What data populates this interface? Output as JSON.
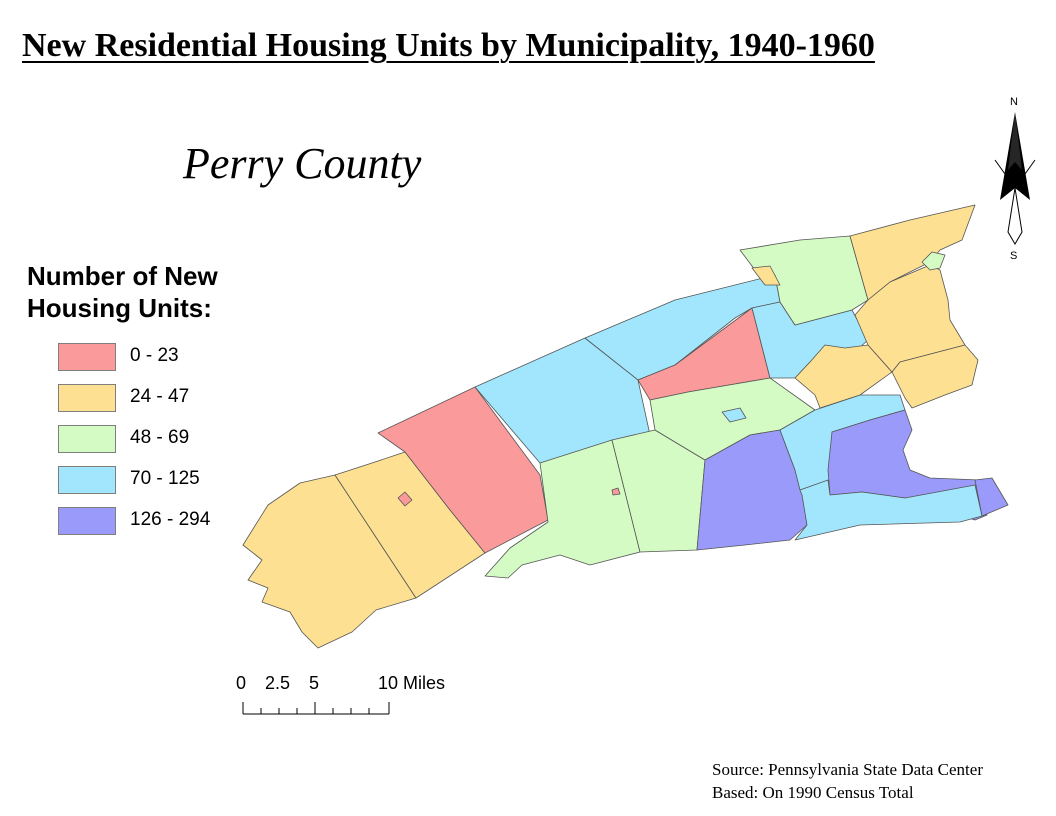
{
  "title": "New Residential Housing Units by Municipality, 1940-1960",
  "county_name": "Perry County",
  "legend": {
    "title_line1": "Number of New",
    "title_line2": "Housing Units:",
    "classes": [
      {
        "label": "0 - 23",
        "color": "#fa9a9a"
      },
      {
        "label": "24 - 47",
        "color": "#fde091"
      },
      {
        "label": "48 - 69",
        "color": "#d5fbc5"
      },
      {
        "label": "70 - 125",
        "color": "#a1e6fd"
      },
      {
        "label": "126 - 294",
        "color": "#9a9afa"
      }
    ]
  },
  "north_arrow": {
    "n": "N",
    "s": "S"
  },
  "scale_bar": {
    "labels": [
      "0",
      "2.5",
      "5",
      "10 Miles"
    ]
  },
  "source": {
    "line1": "Source: Pennsylvania State Data Center",
    "line2": "Based: On 1990 Census Total"
  },
  "map_style": {
    "border_color": "#555555"
  }
}
